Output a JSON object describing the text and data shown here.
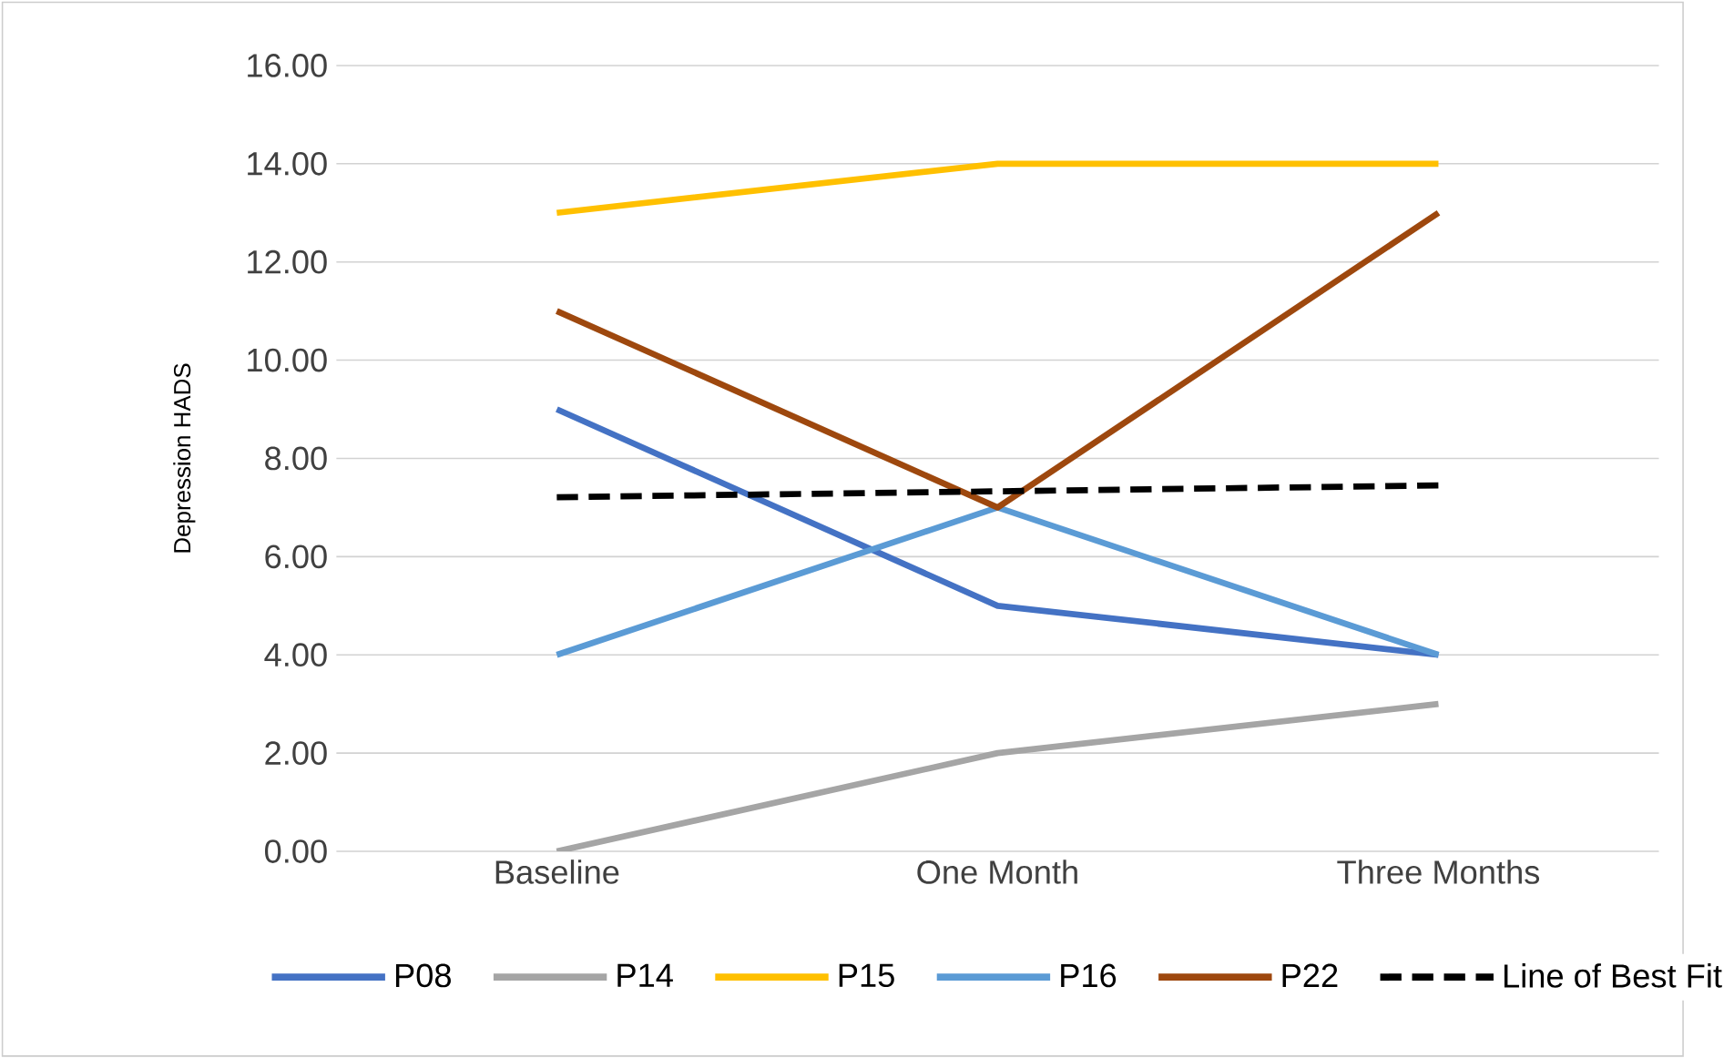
{
  "chart_data": {
    "type": "line",
    "ylabel": "Depression HADS",
    "categories": [
      "Baseline",
      "One Month",
      "Three Months"
    ],
    "series": [
      {
        "name": "P08",
        "color": "#4472c4",
        "values": [
          9,
          5,
          4
        ]
      },
      {
        "name": "P14",
        "color": "#a5a5a5",
        "values": [
          0,
          2,
          3
        ]
      },
      {
        "name": "P15",
        "color": "#ffc000",
        "values": [
          13,
          14,
          14
        ]
      },
      {
        "name": "P16",
        "color": "#5b9bd5",
        "values": [
          4,
          7,
          4
        ]
      },
      {
        "name": "P22",
        "color": "#9e480e",
        "values": [
          11,
          7,
          13
        ]
      },
      {
        "name": "Line of Best Fit",
        "color": "#000000",
        "values": [
          7.21,
          7.33,
          7.45
        ],
        "line_style": "dashed"
      }
    ],
    "ylim": [
      0,
      16
    ],
    "yticks": [
      {
        "value": 0,
        "label": "0.00"
      },
      {
        "value": 2,
        "label": "2.00"
      },
      {
        "value": 4,
        "label": "4.00"
      },
      {
        "value": 6,
        "label": "6.00"
      },
      {
        "value": 8,
        "label": "8.00"
      },
      {
        "value": 10,
        "label": "10.00"
      },
      {
        "value": 12,
        "label": "12.00"
      },
      {
        "value": 14,
        "label": "14.00"
      },
      {
        "value": 16,
        "label": "16.00"
      }
    ],
    "grid": "y",
    "legend": "bottom",
    "marker": "none"
  }
}
